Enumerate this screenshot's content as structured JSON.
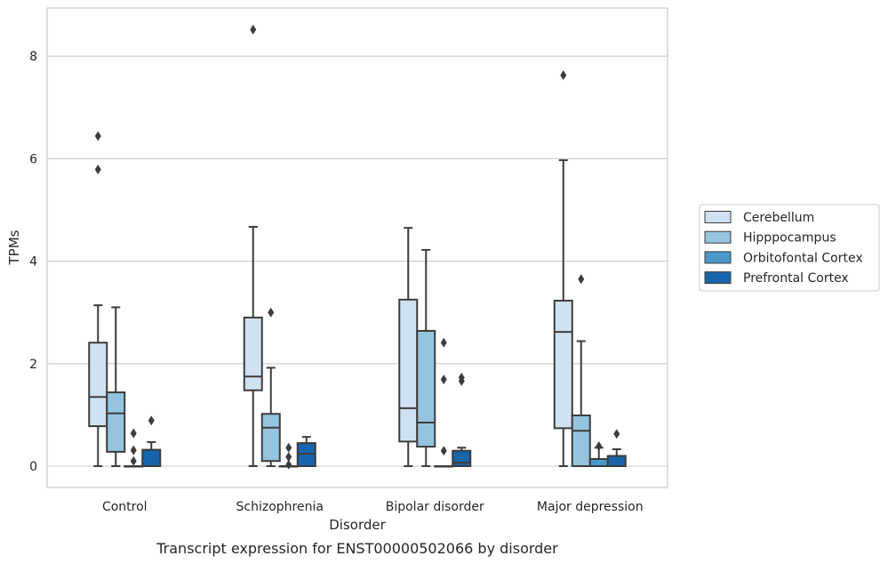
{
  "chart_data": {
    "type": "box",
    "xlabel": "Disorder",
    "ylabel": "TPMs",
    "caption": "Transcript expression for ENST00000502066 by disorder",
    "ylim": [
      -0.4,
      8.95
    ],
    "yticks": [
      0,
      2,
      4,
      6,
      8
    ],
    "grid": "horizontal",
    "legend_position": "right",
    "categories": [
      "Control",
      "Schizophrenia",
      "Bipolar disorder",
      "Major depression"
    ],
    "series": [
      {
        "name": "Cerebellum",
        "color": "#d0e1f2",
        "boxes": [
          {
            "whislo": 0,
            "q1": 0.78,
            "med": 1.35,
            "q3": 2.41,
            "whishi": 3.14,
            "fliers": [
              5.79,
              6.44
            ]
          },
          {
            "whislo": 0,
            "q1": 1.48,
            "med": 1.75,
            "q3": 2.9,
            "whishi": 4.67,
            "fliers": [
              8.52
            ]
          },
          {
            "whislo": 0,
            "q1": 0.48,
            "med": 1.13,
            "q3": 3.25,
            "whishi": 4.65,
            "fliers": []
          },
          {
            "whislo": 0,
            "q1": 0.74,
            "med": 2.62,
            "q3": 3.23,
            "whishi": 5.97,
            "fliers": [
              7.63
            ]
          }
        ]
      },
      {
        "name": "Hipppocampus",
        "color": "#94c4df",
        "boxes": [
          {
            "whislo": 0,
            "q1": 0.28,
            "med": 1.03,
            "q3": 1.44,
            "whishi": 3.1,
            "fliers": []
          },
          {
            "whislo": 0,
            "q1": 0.1,
            "med": 0.75,
            "q3": 1.02,
            "whishi": 1.92,
            "fliers": [
              3.0
            ]
          },
          {
            "whislo": 0,
            "q1": 0.38,
            "med": 0.85,
            "q3": 2.64,
            "whishi": 4.22,
            "fliers": []
          },
          {
            "whislo": 0,
            "q1": 0.0,
            "med": 0.69,
            "q3": 0.99,
            "whishi": 2.44,
            "fliers": [
              3.65
            ]
          }
        ]
      },
      {
        "name": "Orbitofontal Cortex",
        "color": "#4a98c9",
        "boxes": [
          {
            "whislo": 0,
            "q1": 0,
            "med": 0,
            "q3": 0,
            "whishi": 0,
            "fliers": [
              0.1,
              0.31,
              0.64
            ]
          },
          {
            "whislo": 0,
            "q1": 0,
            "med": 0,
            "q3": 0,
            "whishi": 0,
            "fliers": [
              0.03,
              0.18,
              0.36
            ]
          },
          {
            "whislo": 0,
            "q1": 0,
            "med": 0,
            "q3": 0,
            "whishi": 0,
            "fliers": [
              0.3,
              1.69,
              2.41
            ]
          },
          {
            "whislo": 0,
            "q1": 0,
            "med": 0,
            "q3": 0.14,
            "whishi": 0.36,
            "fliers": [
              0.39
            ]
          }
        ]
      },
      {
        "name": "Prefrontal Cortex",
        "color": "#1764ab",
        "boxes": [
          {
            "whislo": 0,
            "q1": 0,
            "med": 0,
            "q3": 0.32,
            "whishi": 0.47,
            "fliers": [
              0.89
            ]
          },
          {
            "whislo": 0,
            "q1": 0,
            "med": 0.24,
            "q3": 0.45,
            "whishi": 0.57,
            "fliers": []
          },
          {
            "whislo": 0,
            "q1": 0,
            "med": 0.07,
            "q3": 0.3,
            "whishi": 0.36,
            "fliers": [
              1.66,
              1.73
            ]
          },
          {
            "whislo": 0,
            "q1": 0,
            "med": 0,
            "q3": 0.2,
            "whishi": 0.33,
            "fliers": [
              0.63
            ]
          }
        ]
      }
    ]
  }
}
